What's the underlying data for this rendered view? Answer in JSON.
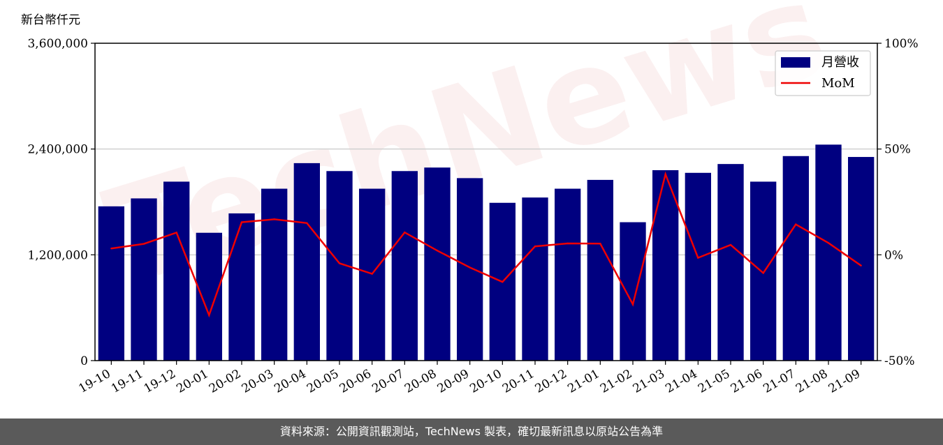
{
  "unit_label": "新台幣仟元",
  "watermark": "TechNews",
  "footer": "資料來源：公開資訊觀測站，TechNews 製表，確切最新訊息以原站公告為準",
  "colors": {
    "bar": "#000080",
    "line": "#ee0000",
    "grid": "#d0d0d0"
  },
  "chart_data": {
    "type": "bar",
    "categories": [
      "19-10",
      "19-11",
      "19-12",
      "20-01",
      "20-02",
      "20-03",
      "20-04",
      "20-05",
      "20-06",
      "20-07",
      "20-08",
      "20-09",
      "20-10",
      "20-11",
      "20-12",
      "21-01",
      "21-02",
      "21-03",
      "21-04",
      "21-05",
      "21-06",
      "21-07",
      "21-08",
      "21-09"
    ],
    "series": [
      {
        "name": "月營收",
        "type": "bar",
        "axis": "left",
        "values": [
          1750000,
          1840000,
          2030000,
          1450000,
          1670000,
          1950000,
          2240000,
          2150000,
          1950000,
          2150000,
          2190000,
          2070000,
          1790000,
          1850000,
          1950000,
          2050000,
          1570000,
          2160000,
          2130000,
          2230000,
          2030000,
          2320000,
          2450000,
          2310000
        ]
      },
      {
        "name": "MoM",
        "type": "line",
        "axis": "right",
        "values": [
          3.0,
          5.2,
          10.5,
          -28.5,
          15.4,
          16.8,
          15.0,
          -4.0,
          -9.0,
          10.6,
          2.0,
          -6.0,
          -12.8,
          4.0,
          5.4,
          5.3,
          -23.4,
          38.1,
          -1.4,
          4.7,
          -8.6,
          14.4,
          5.6,
          -5.1
        ]
      }
    ],
    "ylim": [
      0,
      3600000
    ],
    "yticks": [
      0,
      1200000,
      2400000,
      3600000
    ],
    "ytick_labels": [
      "0",
      "1,200,000",
      "2,400,000",
      "3,600,000"
    ],
    "y2lim": [
      -50,
      100
    ],
    "y2ticks": [
      -50,
      0,
      50,
      100
    ],
    "y2tick_labels": [
      "-50%",
      "0%",
      "50%",
      "100%"
    ],
    "grid": "horizontal",
    "legend_position": "top-right"
  }
}
